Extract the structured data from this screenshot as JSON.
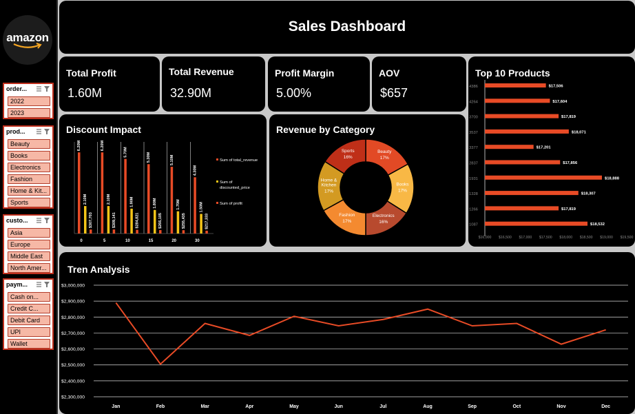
{
  "brand": {
    "logo_text": "amazon"
  },
  "header": {
    "title": "Sales Dashboard"
  },
  "slicers": [
    {
      "title": "order...",
      "items": [
        "2022",
        "2023"
      ]
    },
    {
      "title": "prod...",
      "items": [
        "Beauty",
        "Books",
        "Electronics",
        "Fashion",
        "Home & Kit...",
        "Sports"
      ]
    },
    {
      "title": "custo...",
      "items": [
        "Asia",
        "Europe",
        "Middle East",
        "North Amer..."
      ]
    },
    {
      "title": "paym...",
      "items": [
        "Cash on...",
        "Credit C...",
        "Debit Card",
        "UPI",
        "Wallet"
      ]
    }
  ],
  "kpis": {
    "total_profit": {
      "label": "Total Profit",
      "value": "1.60M"
    },
    "total_revenue": {
      "label": "Total Revenue",
      "value": "32.90M"
    },
    "profit_margin": {
      "label": "Profit Margin",
      "value": "5.00%"
    },
    "aov": {
      "label": "AOV",
      "value": "$657"
    }
  },
  "colors": {
    "panel": "#000000",
    "background": "#c8c8c8",
    "accent": "#e84b26",
    "yellow": "#f5c518",
    "slicer_fill": "#f6b8a6"
  },
  "chart_data": [
    {
      "type": "bar",
      "title": "Discount Impact",
      "categories": [
        "0",
        "5",
        "10",
        "15",
        "20",
        "30"
      ],
      "series": [
        {
          "name": "Sum of total_revenue",
          "values": [
            6.2,
            6.2,
            5.7,
            5.3,
            5.1,
            4.3
          ],
          "labels": [
            "6.20M",
            "6.20M",
            "5.70M",
            "5.30M",
            "5.10M",
            "4.30M"
          ],
          "color": "#e84b26"
        },
        {
          "name": "Sum of discounted_price",
          "values": [
            2.1,
            2.1,
            1.9,
            1.8,
            1.7,
            1.5
          ],
          "labels": [
            "2.10M",
            "2.10M",
            "1.90M",
            "1.80M",
            "1.70M",
            "1.50M"
          ],
          "color": "#f5c518"
        },
        {
          "name": "Sum of profit",
          "values": [
            0.307703,
            0.309141,
            0.28482,
            0.266105,
            0.255435,
            0.217333
          ],
          "labels": [
            "$307,703",
            "$309,141",
            "$284,821",
            "$266,105",
            "$255,435",
            "$217,333"
          ],
          "color": "#e84b26"
        }
      ],
      "legend_position": "right",
      "ylim": [
        0,
        7
      ]
    },
    {
      "type": "pie",
      "title": "Revenue by Category",
      "slices": [
        {
          "label": "Beauty",
          "value": 17,
          "pct_label": "17%",
          "color": "#e24a25"
        },
        {
          "label": "Books",
          "value": 17,
          "pct_label": "17%",
          "color": "#f8b845"
        },
        {
          "label": "Electronics",
          "value": 16,
          "pct_label": "16%",
          "color": "#b84a2e"
        },
        {
          "label": "Fashion",
          "value": 17,
          "pct_label": "17%",
          "color": "#f48a30"
        },
        {
          "label": "Home & Kitchen",
          "value": 17,
          "pct_label": "17%",
          "color": "#d39a22"
        },
        {
          "label": "Sports",
          "value": 16,
          "pct_label": "16%",
          "color": "#bf2f18"
        }
      ],
      "donut": true
    },
    {
      "type": "bar",
      "orientation": "horizontal",
      "title": "Top 10 Products",
      "categories": [
        "4386",
        "4264",
        "3700",
        "3537",
        "3377",
        "2837",
        "1931",
        "1328",
        "1266",
        "1087"
      ],
      "values": [
        17506,
        17604,
        17819,
        18071,
        17201,
        17856,
        18888,
        18307,
        17819,
        18532
      ],
      "labels": [
        "$17,506",
        "$17,604",
        "$17,819",
        "$18,071",
        "$17,201",
        "$17,856",
        "$18,888",
        "$18,307",
        "$17,819",
        "$18,532"
      ],
      "xlim": [
        16000,
        19500
      ],
      "xticks": [
        "$16,000",
        "$16,500",
        "$17,000",
        "$17,500",
        "$18,000",
        "$18,500",
        "$19,000",
        "$19,500"
      ],
      "color": "#e84b26"
    },
    {
      "type": "line",
      "title": "Tren Analysis",
      "categories": [
        "Jan",
        "Feb",
        "Mar",
        "Apr",
        "May",
        "Jun",
        "Jul",
        "Aug",
        "Sep",
        "Oct",
        "Nov",
        "Dec"
      ],
      "values": [
        2890000,
        2505000,
        2760000,
        2685000,
        2805000,
        2745000,
        2785000,
        2850000,
        2745000,
        2760000,
        2630000,
        2720000
      ],
      "ylim": [
        2300000,
        3000000
      ],
      "yticks": [
        "$2,300,000",
        "$2,400,000",
        "$2,500,000",
        "$2,600,000",
        "$2,700,000",
        "$2,800,000",
        "$2,900,000",
        "$3,000,000"
      ],
      "grid": true,
      "color": "#e84b26"
    }
  ]
}
